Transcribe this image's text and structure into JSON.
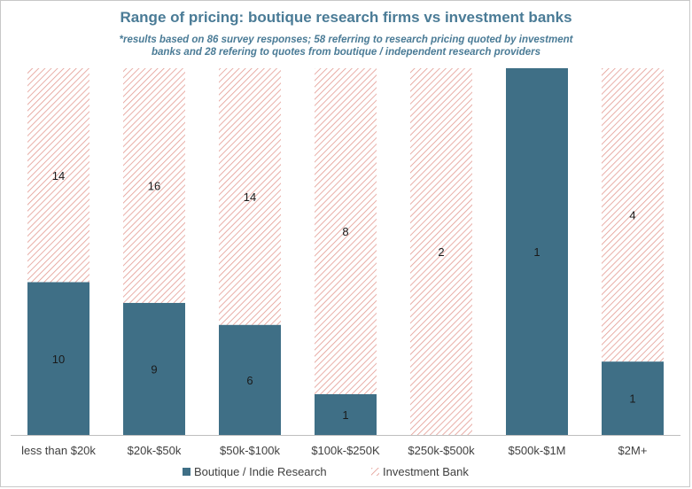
{
  "chart_data": {
    "type": "bar",
    "stacked": true,
    "normalized": true,
    "title": "Range of pricing: boutique research firms vs investment banks",
    "subtitle": [
      "*results based on 86 survey responses; 58 referring to research pricing quoted by investment",
      "banks and 28 refering to quotes from boutique / independent research providers"
    ],
    "categories": [
      "less than $20k",
      "$20k-$50k",
      "$50k-$100k",
      "$100k-$250K",
      "$250k-$500k",
      "$500k-$1M",
      "$2M+"
    ],
    "series": [
      {
        "name": "Boutique / Indie Research",
        "values": [
          10,
          9,
          6,
          1,
          0,
          1,
          1
        ],
        "color": "#3f6f86"
      },
      {
        "name": "Investment Bank",
        "values": [
          14,
          16,
          14,
          8,
          2,
          0,
          4
        ],
        "color": "#e8a9a1",
        "pattern": "diagonal-hatch"
      }
    ],
    "legend_position": "bottom",
    "grid": false
  }
}
